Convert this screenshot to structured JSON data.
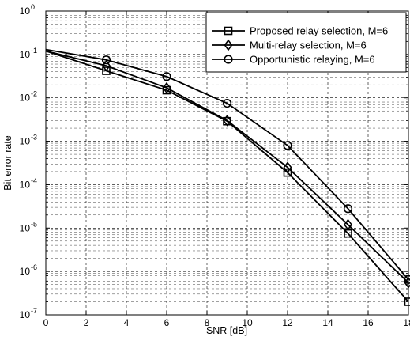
{
  "chart_data": {
    "type": "line",
    "title": "",
    "xlabel": "SNR [dB]",
    "ylabel": "Bit error rate",
    "xlim": [
      0,
      18
    ],
    "ylim": [
      1e-07,
      1
    ],
    "yscale": "log",
    "grid": true,
    "legend_position": "top-right",
    "x_ticks": [
      0,
      2,
      4,
      6,
      8,
      10,
      12,
      14,
      16,
      18
    ],
    "x_tick_labels": [
      "0",
      "2",
      "4",
      "6",
      "8",
      "10",
      "12",
      "14",
      "16",
      "18"
    ],
    "y_tick_exponents": [
      0,
      -1,
      -2,
      -3,
      -4,
      -5,
      -6,
      -7
    ],
    "y_tick_labels": [
      {
        "base": "10",
        "exp": "0"
      },
      {
        "base": "10",
        "exp": "-1"
      },
      {
        "base": "10",
        "exp": "-2"
      },
      {
        "base": "10",
        "exp": "-3"
      },
      {
        "base": "10",
        "exp": "-4"
      },
      {
        "base": "10",
        "exp": "-5"
      },
      {
        "base": "10",
        "exp": "-6"
      },
      {
        "base": "10",
        "exp": "-7"
      }
    ],
    "x": [
      0,
      3,
      6,
      9,
      12,
      15,
      18
    ],
    "series": [
      {
        "name": "Proposed relay selection, M=6",
        "marker": "square",
        "color": "#000000",
        "values": [
          0.12,
          0.042,
          0.015,
          0.0029,
          0.00019,
          7.5e-06,
          2e-07
        ]
      },
      {
        "name": "Multi-relay selection, M=6",
        "marker": "diamond",
        "color": "#000000",
        "values": [
          0.12,
          0.055,
          0.017,
          0.003,
          0.00025,
          1.2e-05,
          5.5e-07
        ]
      },
      {
        "name": "Opportunistic relaying, M=6",
        "marker": "circle",
        "color": "#000000",
        "values": [
          0.13,
          0.075,
          0.031,
          0.0075,
          0.0008,
          2.8e-05,
          6.5e-07
        ]
      }
    ]
  }
}
